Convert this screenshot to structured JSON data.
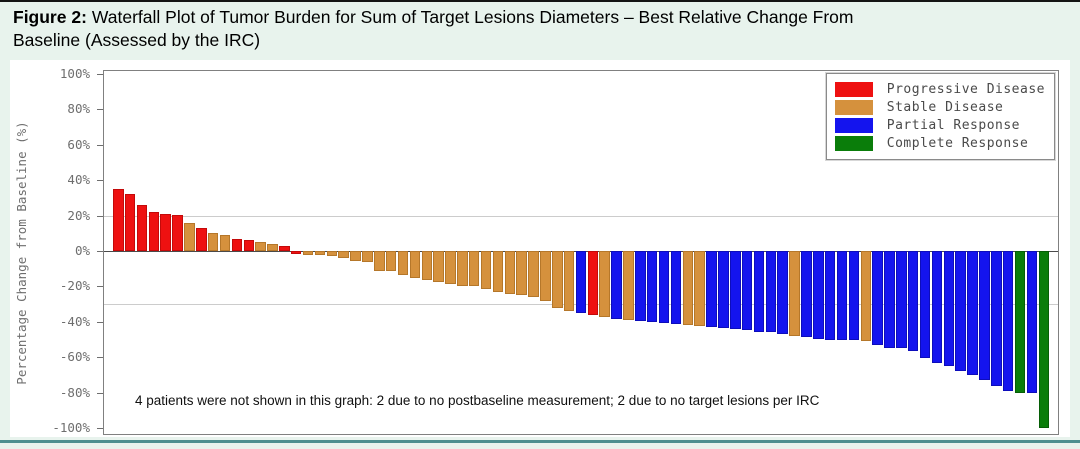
{
  "header": {
    "figure_label": "Figure 2:",
    "title_line1": "Waterfall Plot of Tumor Burden for Sum of Target Lesions Diameters – Best Relative Change From",
    "title_line2": "Baseline (Assessed by the IRC)"
  },
  "chart_data": {
    "type": "bar",
    "subtype": "waterfall",
    "title": "Waterfall Plot of Tumor Burden for Sum of Target Lesions Diameters – Best Relative Change From Baseline (Assessed by the IRC)",
    "xlabel": "",
    "ylabel": "Percentage Change from Baseline (%)",
    "ylim": [
      -100,
      100
    ],
    "y_ticks": [
      {
        "label": "100%",
        "value": 100
      },
      {
        "label": "80%",
        "value": 80
      },
      {
        "label": "60%",
        "value": 60
      },
      {
        "label": "40%",
        "value": 40
      },
      {
        "label": "20%",
        "value": 20
      },
      {
        "label": "0%",
        "value": 0
      },
      {
        "label": "-20%",
        "value": -20
      },
      {
        "label": "-40%",
        "value": -40
      },
      {
        "label": "-60%",
        "value": -60
      },
      {
        "label": "-80%",
        "value": -80
      },
      {
        "label": "-100%",
        "value": -100
      }
    ],
    "reference_lines": [
      20,
      -30
    ],
    "zero_line": 0,
    "legend": {
      "position": "top-right",
      "entries": [
        {
          "code": "PD",
          "label": "Progressive Disease",
          "color": "#ee1111"
        },
        {
          "code": "SD",
          "label": "Stable Disease",
          "color": "#d5913d"
        },
        {
          "code": "PR",
          "label": "Partial Response",
          "color": "#1414ee"
        },
        {
          "code": "CR",
          "label": "Complete Response",
          "color": "#0a7d0a"
        }
      ]
    },
    "note": "4 patients were not shown in this graph: 2 due to no postbaseline measurement; 2 due to no target lesions per IRC",
    "bars": [
      {
        "value": 35,
        "response": "PD"
      },
      {
        "value": 32,
        "response": "PD"
      },
      {
        "value": 26,
        "response": "PD"
      },
      {
        "value": 22,
        "response": "PD"
      },
      {
        "value": 21,
        "response": "PD"
      },
      {
        "value": 20.5,
        "response": "PD"
      },
      {
        "value": 16,
        "response": "SD"
      },
      {
        "value": 13,
        "response": "PD"
      },
      {
        "value": 10,
        "response": "SD"
      },
      {
        "value": 9,
        "response": "SD"
      },
      {
        "value": 7,
        "response": "PD"
      },
      {
        "value": 6.5,
        "response": "PD"
      },
      {
        "value": 5,
        "response": "SD"
      },
      {
        "value": 4,
        "response": "SD"
      },
      {
        "value": 3,
        "response": "PD"
      },
      {
        "value": -1.5,
        "response": "PD"
      },
      {
        "value": -2,
        "response": "SD"
      },
      {
        "value": -2.5,
        "response": "SD"
      },
      {
        "value": -3,
        "response": "SD"
      },
      {
        "value": -4,
        "response": "SD"
      },
      {
        "value": -5.5,
        "response": "SD"
      },
      {
        "value": -6,
        "response": "SD"
      },
      {
        "value": -11,
        "response": "SD"
      },
      {
        "value": -11.5,
        "response": "SD"
      },
      {
        "value": -13.5,
        "response": "SD"
      },
      {
        "value": -15.5,
        "response": "SD"
      },
      {
        "value": -16.5,
        "response": "SD"
      },
      {
        "value": -17.5,
        "response": "SD"
      },
      {
        "value": -18.5,
        "response": "SD"
      },
      {
        "value": -19.5,
        "response": "SD"
      },
      {
        "value": -20,
        "response": "SD"
      },
      {
        "value": -21.5,
        "response": "SD"
      },
      {
        "value": -23,
        "response": "SD"
      },
      {
        "value": -24,
        "response": "SD"
      },
      {
        "value": -25,
        "response": "SD"
      },
      {
        "value": -26,
        "response": "SD"
      },
      {
        "value": -28,
        "response": "SD"
      },
      {
        "value": -32,
        "response": "SD"
      },
      {
        "value": -34,
        "response": "SD"
      },
      {
        "value": -35,
        "response": "PR"
      },
      {
        "value": -36,
        "response": "PD"
      },
      {
        "value": -37,
        "response": "SD"
      },
      {
        "value": -38.5,
        "response": "PR"
      },
      {
        "value": -39,
        "response": "SD"
      },
      {
        "value": -39.5,
        "response": "PR"
      },
      {
        "value": -40,
        "response": "PR"
      },
      {
        "value": -40.5,
        "response": "PR"
      },
      {
        "value": -41,
        "response": "PR"
      },
      {
        "value": -41.5,
        "response": "SD"
      },
      {
        "value": -42.5,
        "response": "SD"
      },
      {
        "value": -43,
        "response": "PR"
      },
      {
        "value": -43.5,
        "response": "PR"
      },
      {
        "value": -44,
        "response": "PR"
      },
      {
        "value": -44.5,
        "response": "PR"
      },
      {
        "value": -45.5,
        "response": "PR"
      },
      {
        "value": -46,
        "response": "PR"
      },
      {
        "value": -47,
        "response": "PR"
      },
      {
        "value": -48,
        "response": "SD"
      },
      {
        "value": -48.5,
        "response": "PR"
      },
      {
        "value": -49.5,
        "response": "PR"
      },
      {
        "value": -50,
        "response": "PR"
      },
      {
        "value": -50.5,
        "response": "PR"
      },
      {
        "value": -50.5,
        "response": "PR"
      },
      {
        "value": -51,
        "response": "SD"
      },
      {
        "value": -53,
        "response": "PR"
      },
      {
        "value": -54.5,
        "response": "PR"
      },
      {
        "value": -55,
        "response": "PR"
      },
      {
        "value": -56.5,
        "response": "PR"
      },
      {
        "value": -60.5,
        "response": "PR"
      },
      {
        "value": -63.5,
        "response": "PR"
      },
      {
        "value": -65,
        "response": "PR"
      },
      {
        "value": -68,
        "response": "PR"
      },
      {
        "value": -70,
        "response": "PR"
      },
      {
        "value": -73,
        "response": "PR"
      },
      {
        "value": -76,
        "response": "PR"
      },
      {
        "value": -79,
        "response": "PR"
      },
      {
        "value": -80,
        "response": "CR"
      },
      {
        "value": -80,
        "response": "PR"
      },
      {
        "value": -100,
        "response": "CR"
      }
    ]
  },
  "colors": {
    "page_bg": "#e8f3ed",
    "panel_bg": "#ffffff",
    "top_strip": "#141414",
    "bottom_strip": "#4d8f8f",
    "plot_frame": "#808080",
    "grid_line": "#cccccc",
    "zero_line": "#4a4a4a",
    "tick_text": "#6e6e6e",
    "legend_text": "#4a4a4a"
  }
}
